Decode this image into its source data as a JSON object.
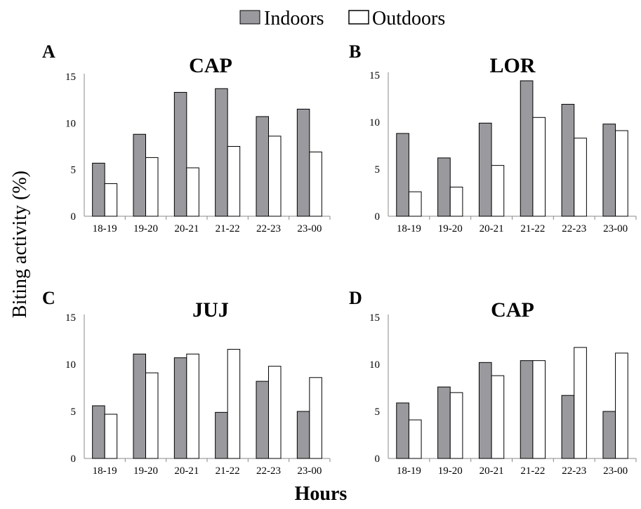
{
  "legend": {
    "indoors": "Indoors",
    "outdoors": "Outdoors"
  },
  "ylabel": "Biting activity (%)",
  "xlabel": "Hours",
  "colors": {
    "indoors": "#9a9a9e",
    "outdoors": "#ffffff",
    "stroke": "#000000"
  },
  "chart_data": [
    {
      "panel": "A",
      "title": "CAP",
      "type": "bar",
      "categories": [
        "18-19",
        "19-20",
        "20-21",
        "21-22",
        "22-23",
        "23-00"
      ],
      "ylim": [
        0,
        15
      ],
      "yticks": [
        0,
        5,
        10,
        15
      ],
      "series": [
        {
          "name": "Indoors",
          "values": [
            5.7,
            8.8,
            13.3,
            13.7,
            10.7,
            11.5
          ]
        },
        {
          "name": "Outdoors",
          "values": [
            3.5,
            6.3,
            5.2,
            7.5,
            8.6,
            6.9
          ]
        }
      ]
    },
    {
      "panel": "B",
      "title": "LOR",
      "type": "bar",
      "categories": [
        "18-19",
        "19-20",
        "20-21",
        "21-22",
        "22-23",
        "23-00"
      ],
      "ylim": [
        0,
        15
      ],
      "yticks": [
        0,
        5,
        10,
        15
      ],
      "series": [
        {
          "name": "Indoors",
          "values": [
            8.8,
            6.2,
            9.9,
            14.4,
            11.9,
            9.8
          ]
        },
        {
          "name": "Outdoors",
          "values": [
            2.6,
            3.1,
            5.4,
            10.5,
            8.3,
            9.1
          ]
        }
      ]
    },
    {
      "panel": "C",
      "title": "JUJ",
      "type": "bar",
      "categories": [
        "18-19",
        "19-20",
        "20-21",
        "21-22",
        "22-23",
        "23-00"
      ],
      "ylim": [
        0,
        15
      ],
      "yticks": [
        0,
        5,
        10,
        15
      ],
      "series": [
        {
          "name": "Indoors",
          "values": [
            5.6,
            11.1,
            10.7,
            4.9,
            8.2,
            5.0
          ]
        },
        {
          "name": "Outdoors",
          "values": [
            4.7,
            9.1,
            11.1,
            11.6,
            9.8,
            8.6
          ]
        }
      ]
    },
    {
      "panel": "D",
      "title": "CAP",
      "type": "bar",
      "categories": [
        "18-19",
        "19-20",
        "20-21",
        "21-22",
        "22-23",
        "23-00"
      ],
      "ylim": [
        0,
        15
      ],
      "yticks": [
        0,
        5,
        10,
        15
      ],
      "series": [
        {
          "name": "Indoors",
          "values": [
            5.9,
            7.6,
            10.2,
            10.4,
            6.7,
            5.0
          ]
        },
        {
          "name": "Outdoors",
          "values": [
            4.1,
            7.0,
            8.8,
            10.4,
            11.8,
            11.2
          ]
        }
      ]
    }
  ]
}
